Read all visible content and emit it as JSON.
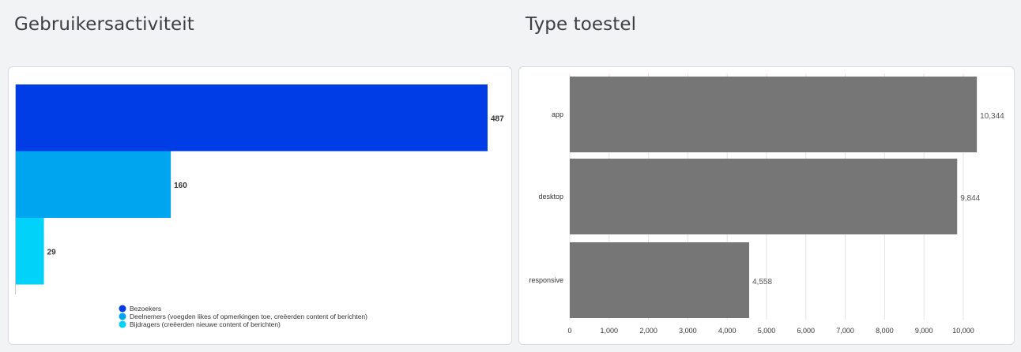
{
  "left_panel": {
    "title": "Gebruikersactiviteit"
  },
  "right_panel": {
    "title": "Type toestel"
  },
  "chart_data": [
    {
      "type": "bar",
      "orientation": "horizontal",
      "title": "Gebruikersactiviteit",
      "series": [
        {
          "name": "Bezoekers",
          "values": [
            487
          ],
          "color": "#003de6"
        },
        {
          "name": "Deelnemers (voegden likes of opmerkingen toe, creëerden content of berichten)",
          "values": [
            160
          ],
          "color": "#00a5f0"
        },
        {
          "name": "Bijdragers (creëerden nieuwe content of berichten)",
          "values": [
            29
          ],
          "color": "#00d2fa"
        }
      ],
      "xlim": [
        0,
        487
      ],
      "grid": false,
      "legend_position": "bottom"
    },
    {
      "type": "bar",
      "orientation": "horizontal",
      "title": "Type toestel",
      "categories": [
        "app",
        "desktop",
        "responsive"
      ],
      "values": [
        10344,
        9844,
        4558
      ],
      "value_labels": [
        "10,344",
        "9,844",
        "4,558"
      ],
      "color": "#767676",
      "xlim": [
        0,
        10400
      ],
      "xticks": [
        0,
        1000,
        2000,
        3000,
        4000,
        5000,
        6000,
        7000,
        8000,
        9000,
        10000
      ],
      "xtick_labels": [
        "0",
        "1,000",
        "2,000",
        "3,000",
        "4,000",
        "5,000",
        "6,000",
        "7,000",
        "8,000",
        "9,000",
        "10,000"
      ],
      "grid": true
    }
  ]
}
